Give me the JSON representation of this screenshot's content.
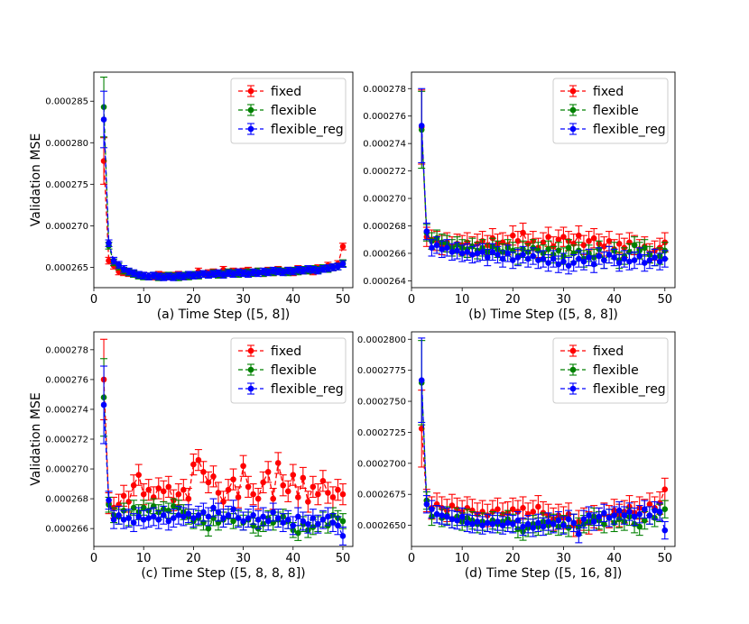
{
  "colors": {
    "fixed": "#ff0000",
    "flexible": "#008000",
    "flexible_reg": "#0000ff"
  },
  "legend_labels": [
    "fixed",
    "flexible",
    "flexible_reg"
  ],
  "chart_data": [
    {
      "id": "a",
      "type": "line",
      "title": "",
      "xlabel": "(a) Time Step ([5, 8])",
      "ylabel": "Validation MSE",
      "xlim": [
        0,
        52
      ],
      "ylim": [
        0.00026255,
        0.0002885
      ],
      "xticks": [
        0,
        10,
        20,
        30,
        40,
        50
      ],
      "xtick_labels": [
        "0",
        "10",
        "20",
        "30",
        "40",
        "50"
      ],
      "yticks": [
        0.000265,
        0.00027,
        0.000275,
        0.00028,
        0.000285
      ],
      "ytick_labels": [
        "0.000265",
        "0.000270",
        "0.000275",
        "0.000280",
        "0.000285"
      ],
      "legend": "top-right",
      "x_start": 2,
      "series": [
        {
          "name": "fixed",
          "err": 4e-07,
          "values": [
            0.0002778,
            0.0002658,
            0.0002652,
            0.0002645,
            0.0002644,
            0.0002643,
            0.0002642,
            0.0002641,
            0.000264,
            0.0002639,
            0.0002639,
            0.0002641,
            0.000264,
            0.0002639,
            0.000264,
            0.0002641,
            0.0002639,
            0.000264,
            0.0002641,
            0.0002645,
            0.0002642,
            0.0002643,
            0.0002644,
            0.0002642,
            0.0002647,
            0.0002643,
            0.0002645,
            0.0002644,
            0.0002645,
            0.0002646,
            0.0002644,
            0.0002645,
            0.0002643,
            0.0002646,
            0.0002644,
            0.0002647,
            0.0002645,
            0.0002646,
            0.0002644,
            0.0002648,
            0.0002646,
            0.0002647,
            0.0002645,
            0.0002649,
            0.0002648,
            0.0002652,
            0.000265,
            0.0002654,
            0.0002675
          ],
          "err_first": 2.8e-06
        },
        {
          "name": "flexible",
          "err": 4e-07,
          "values": [
            0.0002843,
            0.0002676,
            0.0002656,
            0.0002651,
            0.0002646,
            0.0002644,
            0.0002642,
            0.000264,
            0.0002639,
            0.0002639,
            0.000264,
            0.0002638,
            0.0002639,
            0.000264,
            0.0002639,
            0.0002638,
            0.000264,
            0.0002639,
            0.0002641,
            0.000264,
            0.0002642,
            0.0002641,
            0.0002643,
            0.0002641,
            0.0002642,
            0.0002644,
            0.0002643,
            0.0002642,
            0.0002643,
            0.0002644,
            0.0002643,
            0.0002645,
            0.0002643,
            0.0002645,
            0.0002644,
            0.0002646,
            0.0002645,
            0.0002644,
            0.0002646,
            0.0002645,
            0.0002647,
            0.0002646,
            0.0002648,
            0.0002647,
            0.0002649,
            0.0002648,
            0.000265,
            0.0002651,
            0.0002655
          ],
          "err_first": 3.6e-06
        },
        {
          "name": "flexible_reg",
          "err": 4e-07,
          "values": [
            0.0002828,
            0.0002679,
            0.0002658,
            0.0002653,
            0.0002648,
            0.0002645,
            0.0002643,
            0.0002641,
            0.000264,
            0.0002639,
            0.000264,
            0.0002639,
            0.0002638,
            0.0002639,
            0.0002638,
            0.000264,
            0.0002639,
            0.0002641,
            0.000264,
            0.0002641,
            0.0002642,
            0.0002641,
            0.0002642,
            0.0002643,
            0.0002641,
            0.0002643,
            0.0002642,
            0.0002644,
            0.0002643,
            0.0002642,
            0.0002644,
            0.0002643,
            0.0002645,
            0.0002644,
            0.0002646,
            0.0002645,
            0.0002644,
            0.0002646,
            0.0002645,
            0.0002647,
            0.0002646,
            0.0002648,
            0.0002647,
            0.0002646,
            0.0002648,
            0.0002649,
            0.000265,
            0.0002651,
            0.0002654
          ],
          "err_first": 3.4e-06
        }
      ]
    },
    {
      "id": "b",
      "type": "line",
      "title": "",
      "xlabel": "(b) Time Step ([5, 8, 8])",
      "ylabel": "",
      "xlim": [
        0,
        52
      ],
      "ylim": [
        0.0002635,
        0.0002792
      ],
      "xticks": [
        0,
        10,
        20,
        30,
        40,
        50
      ],
      "xtick_labels": [
        "0",
        "10",
        "20",
        "30",
        "40",
        "50"
      ],
      "yticks": [
        0.000264,
        0.000266,
        0.000268,
        0.00027,
        0.000272,
        0.000274,
        0.000276,
        0.000278
      ],
      "ytick_labels": [
        "0.000264",
        "0.000266",
        "0.000268",
        "0.000270",
        "0.000272",
        "0.000274",
        "0.000276",
        "0.000278"
      ],
      "legend": "top-right",
      "x_start": 2,
      "series": [
        {
          "name": "fixed",
          "err": 7e-07,
          "values": [
            0.0002752,
            0.0002672,
            0.000267,
            0.0002669,
            0.0002666,
            0.0002668,
            0.0002665,
            0.0002667,
            0.0002666,
            0.0002668,
            0.0002665,
            0.0002667,
            0.0002669,
            0.0002666,
            0.0002671,
            0.0002667,
            0.0002668,
            0.0002666,
            0.0002673,
            0.0002669,
            0.0002675,
            0.0002667,
            0.0002669,
            0.0002664,
            0.0002668,
            0.0002672,
            0.0002665,
            0.000267,
            0.0002672,
            0.0002669,
            0.0002667,
            0.0002673,
            0.0002666,
            0.0002669,
            0.0002671,
            0.0002667,
            0.0002665,
            0.0002669,
            0.0002663,
            0.0002667,
            0.0002664,
            0.0002668,
            0.0002666,
            0.0002663,
            0.0002665,
            0.000266,
            0.0002662,
            0.0002664,
            0.0002668
          ],
          "err_first": 2.7e-06
        },
        {
          "name": "flexible",
          "err": 6e-07,
          "values": [
            0.000275,
            0.0002675,
            0.0002669,
            0.0002671,
            0.0002668,
            0.0002667,
            0.0002664,
            0.0002666,
            0.0002664,
            0.0002663,
            0.0002665,
            0.0002662,
            0.0002664,
            0.0002661,
            0.0002665,
            0.0002663,
            0.0002661,
            0.0002664,
            0.0002662,
            0.0002658,
            0.0002663,
            0.0002661,
            0.0002664,
            0.0002662,
            0.000266,
            0.0002663,
            0.0002659,
            0.0002662,
            0.0002658,
            0.0002664,
            0.000266,
            0.0002662,
            0.0002656,
            0.000266,
            0.0002657,
            0.0002663,
            0.0002655,
            0.0002659,
            0.0002662,
            0.0002655,
            0.0002658,
            0.0002661,
            0.0002666,
            0.0002662,
            0.0002664,
            0.0002659,
            0.0002657,
            0.0002658,
            0.0002662
          ],
          "err_first": 2.8e-06
        },
        {
          "name": "flexible_reg",
          "err": 6e-07,
          "values": [
            0.0002753,
            0.0002676,
            0.0002664,
            0.0002666,
            0.0002663,
            0.0002664,
            0.0002661,
            0.0002662,
            0.000266,
            0.0002661,
            0.0002659,
            0.000266,
            0.0002661,
            0.0002657,
            0.0002661,
            0.0002659,
            0.0002656,
            0.000266,
            0.0002655,
            0.0002657,
            0.0002659,
            0.0002656,
            0.0002658,
            0.0002655,
            0.0002656,
            0.0002653,
            0.0002656,
            0.0002652,
            0.0002654,
            0.0002651,
            0.0002653,
            0.0002656,
            0.0002654,
            0.0002657,
            0.0002652,
            0.0002658,
            0.0002655,
            0.0002659,
            0.0002657,
            0.0002653,
            0.0002656,
            0.0002654,
            0.0002655,
            0.0002658,
            0.0002653,
            0.0002655,
            0.0002657,
            0.0002654,
            0.0002656
          ],
          "err_first": 2.7e-06
        }
      ]
    },
    {
      "id": "c",
      "type": "line",
      "title": "",
      "xlabel": "(c) Time Step ([5, 8, 8, 8])",
      "ylabel": "Validation MSE",
      "xlim": [
        0,
        52
      ],
      "ylim": [
        0.0002648,
        0.0002792
      ],
      "xticks": [
        0,
        10,
        20,
        30,
        40,
        50
      ],
      "xtick_labels": [
        "0",
        "10",
        "20",
        "30",
        "40",
        "50"
      ],
      "yticks": [
        0.000266,
        0.000268,
        0.00027,
        0.000272,
        0.000274,
        0.000276,
        0.000278
      ],
      "ytick_labels": [
        "0.000266",
        "0.000268",
        "0.000270",
        "0.000272",
        "0.000274",
        "0.000276",
        "0.000278"
      ],
      "legend": "top-right",
      "x_start": 2,
      "series": [
        {
          "name": "fixed",
          "err": 7e-07,
          "values": [
            0.000276,
            0.0002677,
            0.0002674,
            0.0002676,
            0.0002682,
            0.0002678,
            0.0002689,
            0.0002696,
            0.0002683,
            0.0002686,
            0.0002681,
            0.0002687,
            0.0002685,
            0.0002688,
            0.0002679,
            0.0002683,
            0.0002686,
            0.000268,
            0.0002703,
            0.0002706,
            0.0002698,
            0.0002691,
            0.0002695,
            0.0002684,
            0.0002678,
            0.0002686,
            0.0002693,
            0.0002681,
            0.0002702,
            0.0002688,
            0.0002683,
            0.000268,
            0.0002691,
            0.0002698,
            0.000268,
            0.0002704,
            0.0002689,
            0.0002685,
            0.0002696,
            0.0002681,
            0.0002694,
            0.0002678,
            0.0002688,
            0.0002683,
            0.0002692,
            0.0002684,
            0.0002681,
            0.0002686,
            0.0002683
          ],
          "err_first": 2.7e-06
        },
        {
          "name": "flexible",
          "err": 5e-07,
          "values": [
            0.0002748,
            0.0002676,
            0.0002669,
            0.0002668,
            0.0002672,
            0.0002667,
            0.0002674,
            0.0002671,
            0.0002674,
            0.0002672,
            0.0002675,
            0.0002671,
            0.0002673,
            0.0002672,
            0.0002675,
            0.0002674,
            0.0002671,
            0.0002668,
            0.0002665,
            0.0002667,
            0.0002664,
            0.000266,
            0.0002667,
            0.0002664,
            0.0002666,
            0.0002668,
            0.0002665,
            0.0002667,
            0.0002664,
            0.0002666,
            0.0002662,
            0.000266,
            0.0002663,
            0.0002667,
            0.0002664,
            0.0002666,
            0.0002668,
            0.0002665,
            0.0002659,
            0.0002657,
            0.0002663,
            0.0002659,
            0.0002661,
            0.0002663,
            0.0002666,
            0.0002662,
            0.0002669,
            0.0002667,
            0.0002665
          ],
          "err_first": 2.6e-06
        },
        {
          "name": "flexible_reg",
          "err": 6e-07,
          "values": [
            0.0002743,
            0.0002679,
            0.0002666,
            0.0002669,
            0.0002666,
            0.0002667,
            0.0002664,
            0.0002668,
            0.0002666,
            0.0002667,
            0.0002668,
            0.0002666,
            0.0002669,
            0.0002665,
            0.0002667,
            0.0002669,
            0.0002668,
            0.000267,
            0.0002667,
            0.0002669,
            0.0002671,
            0.0002668,
            0.0002674,
            0.0002671,
            0.0002667,
            0.0002669,
            0.0002673,
            0.0002667,
            0.0002665,
            0.0002667,
            0.0002669,
            0.0002666,
            0.0002668,
            0.0002665,
            0.0002671,
            0.0002667,
            0.0002664,
            0.0002666,
            0.0002662,
            0.0002668,
            0.0002665,
            0.0002663,
            0.0002667,
            0.0002663,
            0.0002666,
            0.0002668,
            0.0002664,
            0.0002662,
            0.0002655
          ],
          "err_first": 2.6e-06
        }
      ]
    },
    {
      "id": "d",
      "type": "line",
      "title": "",
      "xlabel": "(d) Time Step ([5, 16, 8])",
      "ylabel": "",
      "xlim": [
        0,
        52
      ],
      "ylim": [
        0.0002633,
        0.0002806
      ],
      "xticks": [
        0,
        10,
        20,
        30,
        40,
        50
      ],
      "xtick_labels": [
        "0",
        "10",
        "20",
        "30",
        "40",
        "50"
      ],
      "yticks": [
        0.000265,
        0.0002675,
        0.00027,
        0.0002725,
        0.000275,
        0.0002775,
        0.00028
      ],
      "ytick_labels": [
        "0.0002650",
        "0.0002675",
        "0.0002700",
        "0.0002725",
        "0.0002750",
        "0.0002775",
        "0.0002800"
      ],
      "legend": "top-right",
      "x_start": 2,
      "series": [
        {
          "name": "fixed",
          "err": 9e-07,
          "values": [
            0.0002728,
            0.000267,
            0.0002664,
            0.0002667,
            0.0002664,
            0.0002662,
            0.0002666,
            0.0002663,
            0.0002661,
            0.0002664,
            0.0002662,
            0.0002659,
            0.0002661,
            0.0002658,
            0.0002661,
            0.0002663,
            0.0002659,
            0.000266,
            0.0002663,
            0.0002661,
            0.0002664,
            0.0002659,
            0.0002661,
            0.0002665,
            0.000266,
            0.0002658,
            0.0002655,
            0.0002658,
            0.0002656,
            0.0002659,
            0.000265,
            0.0002653,
            0.0002655,
            0.0002652,
            0.0002657,
            0.0002655,
            0.0002659,
            0.0002657,
            0.0002662,
            0.0002658,
            0.0002661,
            0.0002665,
            0.000266,
            0.0002664,
            0.0002662,
            0.0002667,
            0.0002664,
            0.0002668,
            0.0002679
          ],
          "err_first": 3.1e-06
        },
        {
          "name": "flexible",
          "err": 7e-07,
          "values": [
            0.0002765,
            0.000267,
            0.0002657,
            0.0002659,
            0.0002656,
            0.0002658,
            0.0002655,
            0.0002657,
            0.0002653,
            0.0002656,
            0.0002654,
            0.0002651,
            0.0002653,
            0.0002652,
            0.0002654,
            0.0002651,
            0.0002653,
            0.0002655,
            0.0002652,
            0.0002647,
            0.0002645,
            0.0002648,
            0.0002651,
            0.0002649,
            0.0002653,
            0.000265,
            0.0002652,
            0.0002649,
            0.0002651,
            0.0002648,
            0.0002652,
            0.0002649,
            0.0002651,
            0.0002653,
            0.0002657,
            0.0002654,
            0.0002651,
            0.0002656,
            0.0002652,
            0.0002655,
            0.0002653,
            0.0002657,
            0.0002651,
            0.0002649,
            0.0002654,
            0.0002658,
            0.0002656,
            0.000266,
            0.0002663
          ],
          "err_first": 3.4e-06
        },
        {
          "name": "flexible_reg",
          "err": 7e-07,
          "values": [
            0.0002767,
            0.0002667,
            0.0002663,
            0.0002659,
            0.0002658,
            0.0002657,
            0.0002655,
            0.0002654,
            0.0002657,
            0.0002652,
            0.0002651,
            0.0002653,
            0.000265,
            0.0002652,
            0.0002651,
            0.0002653,
            0.000265,
            0.0002652,
            0.0002651,
            0.0002654,
            0.0002649,
            0.0002651,
            0.0002648,
            0.0002652,
            0.0002649,
            0.0002653,
            0.0002651,
            0.0002654,
            0.000265,
            0.0002655,
            0.0002652,
            0.0002643,
            0.0002655,
            0.0002658,
            0.0002653,
            0.0002657,
            0.000266,
            0.0002656,
            0.0002658,
            0.0002662,
            0.0002658,
            0.0002661,
            0.0002657,
            0.0002659,
            0.0002663,
            0.0002658,
            0.0002662,
            0.0002661,
            0.0002646
          ],
          "err_first": 3.4e-06
        }
      ]
    }
  ]
}
